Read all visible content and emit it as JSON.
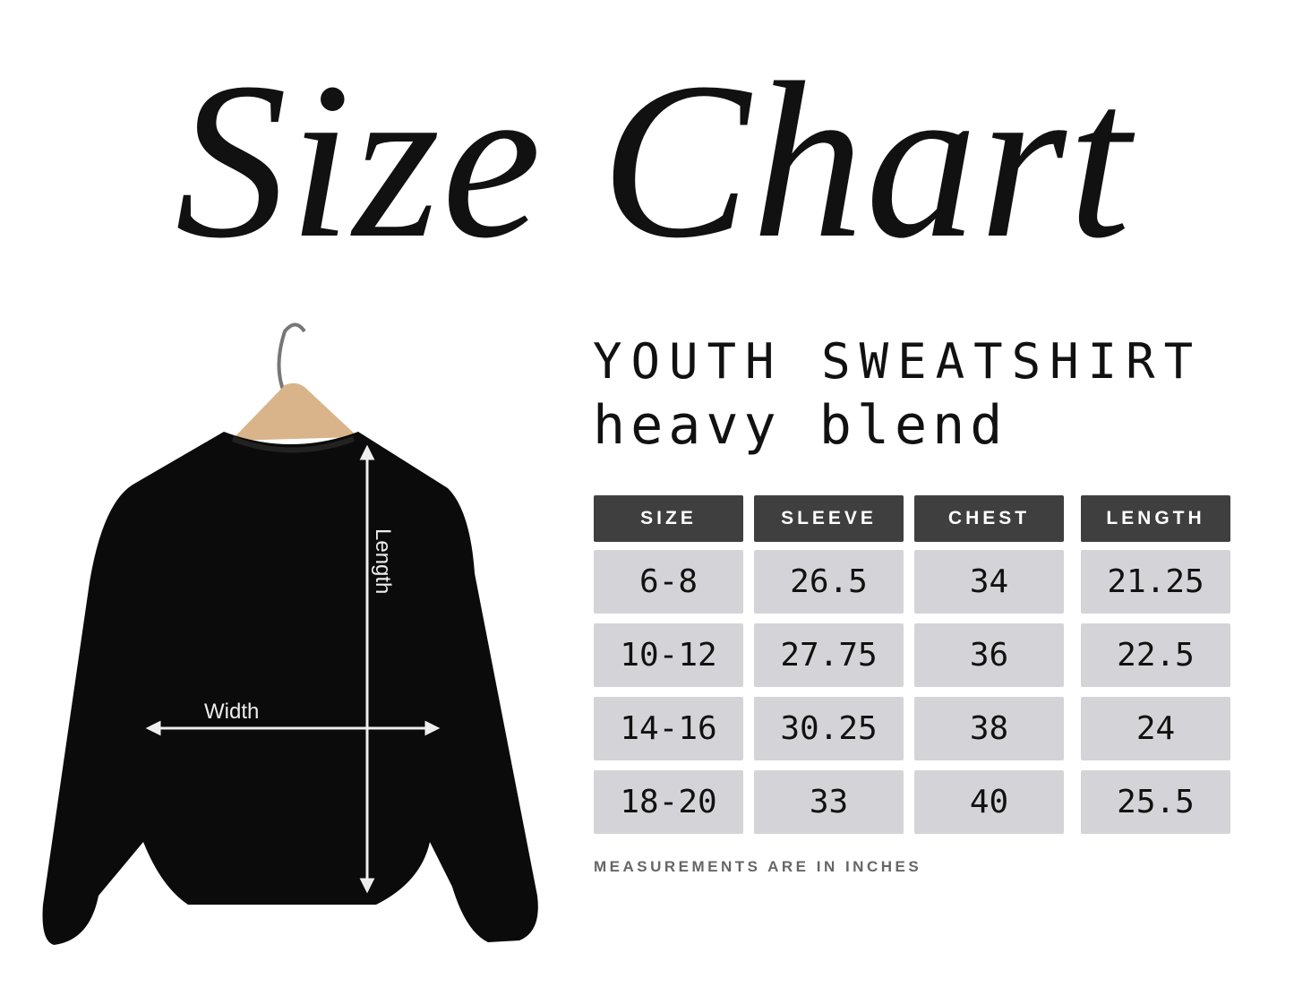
{
  "title": "Size Chart",
  "subtitle": "YOUTH SWEATSHIRT",
  "subtitle2": "heavy blend",
  "illustration": {
    "length_label": "Length",
    "width_label": "Width"
  },
  "table": {
    "headers": [
      "SIZE",
      "SLEEVE",
      "CHEST",
      "LENGTH"
    ],
    "rows": [
      [
        "6-8",
        "26.5",
        "34",
        "21.25"
      ],
      [
        "10-12",
        "27.75",
        "36",
        "22.5"
      ],
      [
        "14-16",
        "30.25",
        "38",
        "24"
      ],
      [
        "18-20",
        "33",
        "40",
        "25.5"
      ]
    ]
  },
  "note": "MEASUREMENTS ARE IN INCHES",
  "colors": {
    "header_bg": "#3f3f3f",
    "cell_bg": "#d4d4d8",
    "note": "#666666"
  }
}
